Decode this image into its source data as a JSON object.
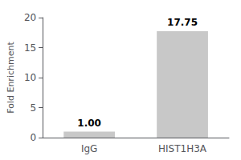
{
  "chart_data": {
    "type": "bar",
    "categories": [
      "IgG",
      "HIST1H3A"
    ],
    "values": [
      1.0,
      17.75
    ],
    "value_labels": [
      "1.00",
      "17.75"
    ],
    "data_labels": true,
    "color": "#c8c8c8",
    "ylabel": "Fold Enrichment",
    "ylim": [
      0,
      20
    ],
    "yticks": [
      0,
      5,
      10,
      15,
      20
    ],
    "grid": false
  }
}
